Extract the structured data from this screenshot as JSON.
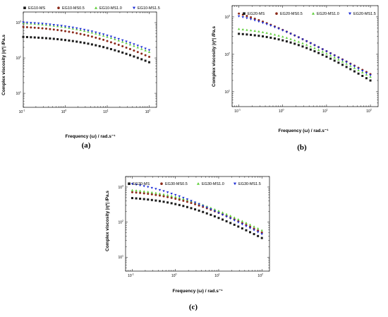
{
  "figure": {
    "colors": {
      "black": "#1a1a1a",
      "red": "#8b2a1a",
      "green": "#5fcf3a",
      "blue": "#1f2fd6"
    }
  },
  "chart_data": [
    {
      "type": "scatter",
      "panel_label": "(a)",
      "xlabel": "Frequency (ω) / rad.s⁻¹",
      "ylabel": "Complex viscosity |η*| /Pa.s",
      "x_scale": "log",
      "y_scale": "log",
      "xlim": [
        0.1,
        150
      ],
      "ylim": [
        4,
        2000
      ],
      "x_ticks": [
        {
          "value": 0.1,
          "base": "10",
          "exp": "-1"
        },
        {
          "value": 1,
          "base": "10",
          "exp": "0"
        },
        {
          "value": 10,
          "base": "10",
          "exp": "1"
        },
        {
          "value": 100,
          "base": "10",
          "exp": "2"
        }
      ],
      "y_ticks": [
        {
          "value": 10,
          "base": "10",
          "exp": "1"
        },
        {
          "value": 100,
          "base": "10",
          "exp": "2"
        },
        {
          "value": 1000,
          "base": "10",
          "exp": "3"
        }
      ],
      "grid": false,
      "legend_position": "top",
      "series": [
        {
          "name": "EG10-MS",
          "marker": "square",
          "color": "#1a1a1a",
          "x_range": [
            0.1,
            100
          ],
          "eta0": 430,
          "tau": 0.15,
          "n": 0.57
        },
        {
          "name": "EG10-MS0.5",
          "marker": "circle",
          "color": "#8b2a1a",
          "x_range": [
            0.1,
            100
          ],
          "eta0": 850,
          "tau": 0.28,
          "n": 0.58
        },
        {
          "name": "EG10-MS1.0",
          "marker": "triangle-up",
          "color": "#5fcf3a",
          "x_range": [
            0.1,
            100
          ],
          "eta0": 1100,
          "tau": 0.28,
          "n": 0.56
        },
        {
          "name": "EG10-MS1.5",
          "marker": "triangle-down",
          "color": "#1f2fd6",
          "x_range": [
            0.1,
            100
          ],
          "eta0": 1150,
          "tau": 0.25,
          "n": 0.55
        }
      ]
    },
    {
      "type": "scatter",
      "panel_label": "(b)",
      "xlabel": "Frequency (ω) / rad.s⁻¹",
      "ylabel": "Complex viscosity |η*| /Pa.s",
      "x_scale": "log",
      "y_scale": "log",
      "xlim": [
        0.07,
        150
      ],
      "ylim": [
        4,
        2000
      ],
      "x_ticks": [
        {
          "value": 0.1,
          "base": "10",
          "exp": "-1"
        },
        {
          "value": 1,
          "base": "10",
          "exp": "0"
        },
        {
          "value": 10,
          "base": "10",
          "exp": "1"
        },
        {
          "value": 100,
          "base": "10",
          "exp": "2"
        }
      ],
      "y_ticks": [
        {
          "value": 10,
          "base": "10",
          "exp": "1"
        },
        {
          "value": 100,
          "base": "10",
          "exp": "2"
        },
        {
          "value": 1000,
          "base": "10",
          "exp": "3"
        }
      ],
      "grid": false,
      "legend_position": "top",
      "series": [
        {
          "name": "EG20-MS",
          "marker": "square",
          "color": "#1a1a1a",
          "x_range": [
            0.1,
            100
          ],
          "eta0": 400,
          "tau": 0.6,
          "n": 0.72
        },
        {
          "name": "EG20-MS0.5",
          "marker": "circle",
          "color": "#8b2a1a",
          "x_range": [
            0.1,
            100
          ],
          "eta0": 2600,
          "tau": 12,
          "n": 0.63
        },
        {
          "name": "EG20-MS1.0",
          "marker": "triangle-up",
          "color": "#5fcf3a",
          "x_range": [
            0.1,
            100
          ],
          "eta0": 560,
          "tau": 0.85,
          "n": 0.69
        },
        {
          "name": "EG20-MS1.5",
          "marker": "triangle-down",
          "color": "#1f2fd6",
          "x_range": [
            0.1,
            100
          ],
          "eta0": 1700,
          "tau": 5,
          "n": 0.66
        }
      ]
    },
    {
      "type": "scatter",
      "panel_label": "(c)",
      "xlabel": "Frequency (ω) / rad.s⁻¹",
      "ylabel": "Complex viscosity |η*| /Pa.s",
      "x_scale": "log",
      "y_scale": "log",
      "xlim": [
        0.07,
        150
      ],
      "ylim": [
        4,
        2000
      ],
      "x_ticks": [
        {
          "value": 0.1,
          "base": "10",
          "exp": "-1"
        },
        {
          "value": 1,
          "base": "10",
          "exp": "0"
        },
        {
          "value": 10,
          "base": "10",
          "exp": "1"
        },
        {
          "value": 100,
          "base": "10",
          "exp": "2"
        }
      ],
      "y_ticks": [
        {
          "value": 10,
          "base": "10",
          "exp": "1"
        },
        {
          "value": 100,
          "base": "10",
          "exp": "2"
        },
        {
          "value": 1000,
          "base": "10",
          "exp": "3"
        }
      ],
      "grid": false,
      "legend_position": "top",
      "series": [
        {
          "name": "EG30-MS",
          "marker": "square",
          "color": "#1a1a1a",
          "x_range": [
            0.1,
            100
          ],
          "eta0": 560,
          "tau": 0.6,
          "n": 0.66
        },
        {
          "name": "EG30-MS0.5",
          "marker": "circle",
          "color": "#8b2a1a",
          "x_range": [
            0.1,
            100
          ],
          "eta0": 850,
          "tau": 0.75,
          "n": 0.64
        },
        {
          "name": "EG30-MS1.0",
          "marker": "triangle-up",
          "color": "#5fcf3a",
          "x_range": [
            0.1,
            100
          ],
          "eta0": 980,
          "tau": 0.8,
          "n": 0.63
        },
        {
          "name": "EG30-MS1.5",
          "marker": "triangle-down",
          "color": "#1f2fd6",
          "x_range": [
            0.1,
            100
          ],
          "eta0": 1800,
          "tau": 3,
          "n": 0.64
        }
      ]
    }
  ]
}
